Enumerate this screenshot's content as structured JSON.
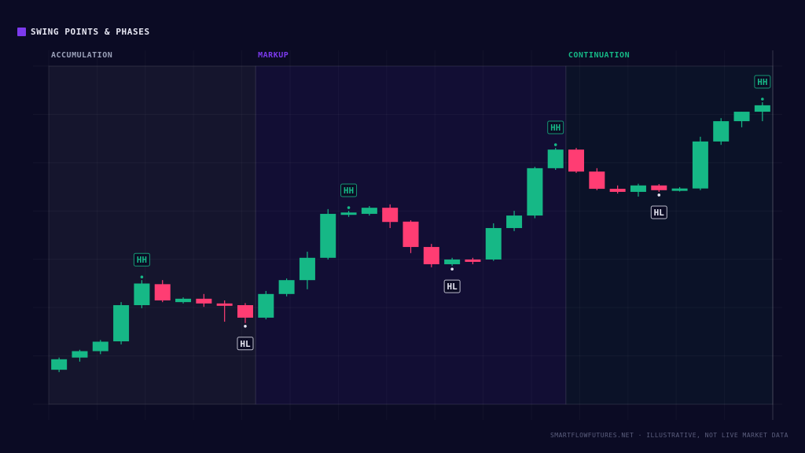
{
  "title": "SWING POINTS & PHASES",
  "footer": "SMARTFLOWFUTURES.NET · ILLUSTRATIVE, NOT LIVE MARKET DATA",
  "colors": {
    "background": "#0b0b24",
    "bull": "#16b886",
    "bear": "#ff3d73",
    "title_swatch": "#7c3aed",
    "accumulation_label": "#9aa0b8",
    "markup_label": "#7c3aed",
    "continuation_label": "#16b886",
    "hh_label": "#16b886",
    "hl_label": "#e6e6f2"
  },
  "chart_data": {
    "type": "candlestick",
    "grid": true,
    "ylim": [
      0,
      100
    ],
    "phases": [
      {
        "label": "ACCUMULATION",
        "start": 0,
        "end": 10
      },
      {
        "label": "MARKUP",
        "start": 10,
        "end": 25
      },
      {
        "label": "CONTINUATION",
        "start": 25,
        "end": 35
      }
    ],
    "candles": [
      {
        "o": 10.2,
        "h": 13.8,
        "l": 9.5,
        "c": 13.3
      },
      {
        "o": 13.8,
        "h": 16.1,
        "l": 12.6,
        "c": 15.7
      },
      {
        "o": 15.7,
        "h": 19.0,
        "l": 14.8,
        "c": 18.5
      },
      {
        "o": 18.6,
        "h": 30.2,
        "l": 17.7,
        "c": 29.3
      },
      {
        "o": 29.3,
        "h": 36.7,
        "l": 28.4,
        "c": 35.7
      },
      {
        "o": 35.5,
        "h": 36.7,
        "l": 30.2,
        "c": 30.7
      },
      {
        "o": 30.2,
        "h": 31.6,
        "l": 29.8,
        "c": 31.2
      },
      {
        "o": 31.2,
        "h": 32.6,
        "l": 28.8,
        "c": 29.8
      },
      {
        "o": 29.8,
        "h": 30.7,
        "l": 24.4,
        "c": 29.3
      },
      {
        "o": 29.3,
        "h": 29.9,
        "l": 24.0,
        "c": 25.6
      },
      {
        "o": 25.6,
        "h": 33.5,
        "l": 25.1,
        "c": 32.6
      },
      {
        "o": 32.6,
        "h": 37.2,
        "l": 31.9,
        "c": 36.7
      },
      {
        "o": 36.7,
        "h": 45.1,
        "l": 34.0,
        "c": 43.3
      },
      {
        "o": 43.3,
        "h": 57.7,
        "l": 42.8,
        "c": 56.3
      },
      {
        "o": 56.3,
        "h": 57.2,
        "l": 55.4,
        "c": 56.7
      },
      {
        "o": 56.3,
        "h": 58.6,
        "l": 55.8,
        "c": 58.1
      },
      {
        "o": 58.1,
        "h": 59.1,
        "l": 52.1,
        "c": 53.9
      },
      {
        "o": 54.0,
        "h": 54.4,
        "l": 44.7,
        "c": 46.5
      },
      {
        "o": 46.5,
        "h": 47.4,
        "l": 40.5,
        "c": 41.4
      },
      {
        "o": 41.4,
        "h": 43.3,
        "l": 40.9,
        "c": 42.8
      },
      {
        "o": 42.8,
        "h": 43.3,
        "l": 41.4,
        "c": 42.4
      },
      {
        "o": 42.8,
        "h": 53.5,
        "l": 42.4,
        "c": 52.1
      },
      {
        "o": 52.1,
        "h": 57.2,
        "l": 51.2,
        "c": 55.8
      },
      {
        "o": 55.8,
        "h": 70.2,
        "l": 55.0,
        "c": 69.8
      },
      {
        "o": 69.8,
        "h": 75.8,
        "l": 69.3,
        "c": 75.3
      },
      {
        "o": 75.3,
        "h": 75.8,
        "l": 68.4,
        "c": 68.8
      },
      {
        "o": 68.8,
        "h": 69.8,
        "l": 63.3,
        "c": 63.7
      },
      {
        "o": 63.7,
        "h": 64.7,
        "l": 62.3,
        "c": 62.8
      },
      {
        "o": 62.8,
        "h": 65.2,
        "l": 61.4,
        "c": 64.7
      },
      {
        "o": 64.7,
        "h": 65.1,
        "l": 62.8,
        "c": 63.3
      },
      {
        "o": 63.3,
        "h": 64.2,
        "l": 62.9,
        "c": 63.8
      },
      {
        "o": 63.8,
        "h": 79.1,
        "l": 63.3,
        "c": 77.7
      },
      {
        "o": 77.7,
        "h": 84.6,
        "l": 76.7,
        "c": 83.7
      },
      {
        "o": 83.7,
        "h": 86.5,
        "l": 81.9,
        "c": 86.5
      },
      {
        "o": 86.5,
        "h": 89.3,
        "l": 83.7,
        "c": 88.4
      }
    ],
    "swing_points": [
      {
        "index": 4,
        "label": "HH",
        "kind": "high"
      },
      {
        "index": 9,
        "label": "HL",
        "kind": "low"
      },
      {
        "index": 14,
        "label": "HH",
        "kind": "high"
      },
      {
        "index": 19,
        "label": "HL",
        "kind": "low"
      },
      {
        "index": 24,
        "label": "HH",
        "kind": "high"
      },
      {
        "index": 29,
        "label": "HL",
        "kind": "low"
      },
      {
        "index": 34,
        "label": "HH",
        "kind": "high"
      }
    ]
  }
}
